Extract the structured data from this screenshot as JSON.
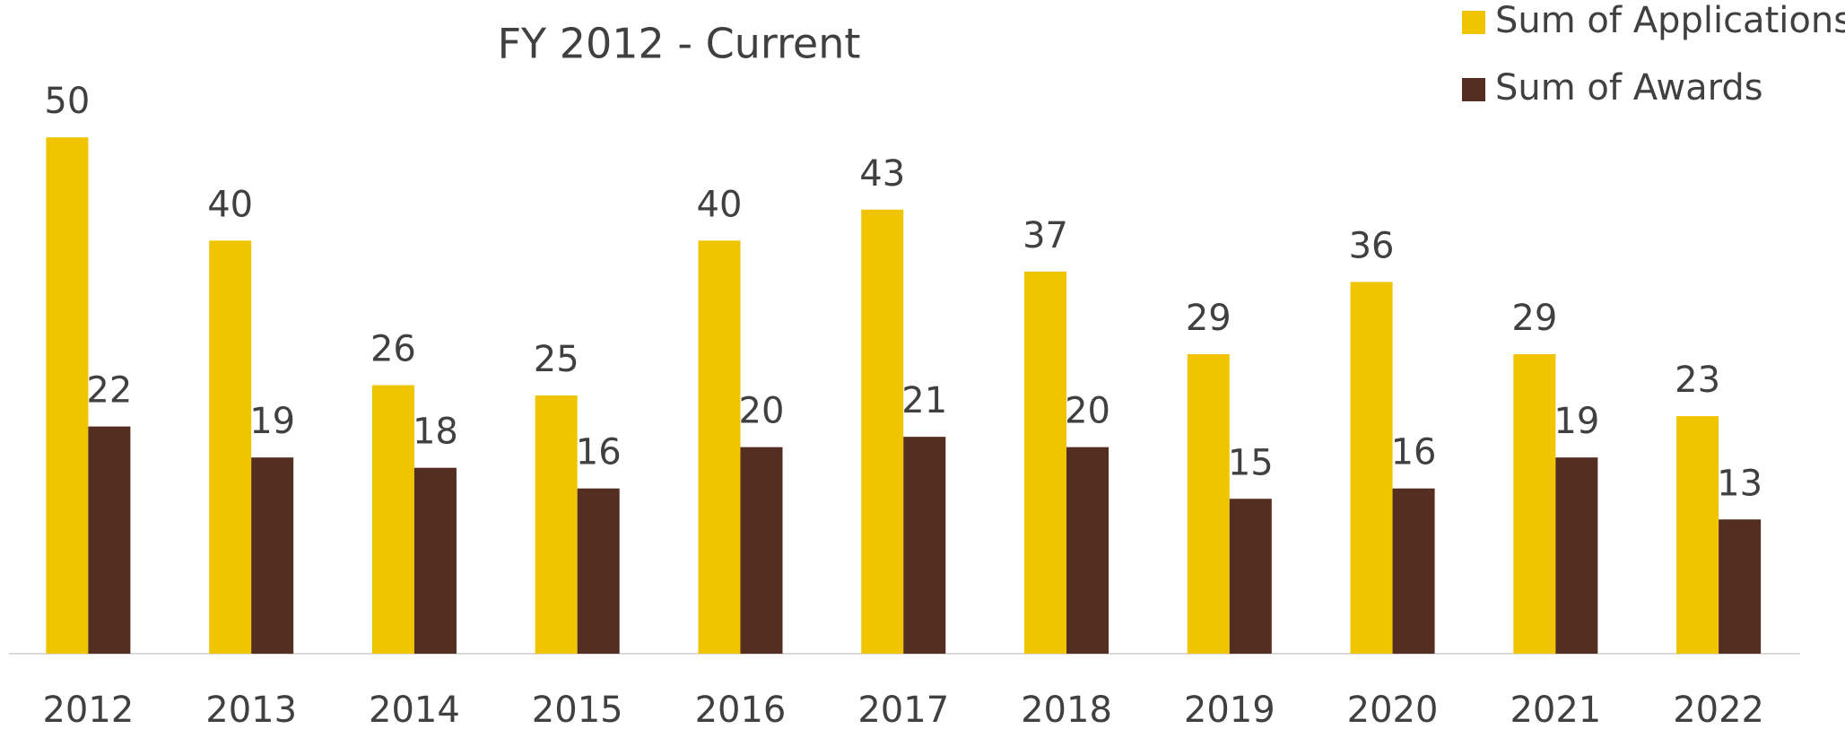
{
  "chart_data": {
    "type": "bar",
    "title": "FY 2012 - Current",
    "categories": [
      "2012",
      "2013",
      "2014",
      "2015",
      "2016",
      "2017",
      "2018",
      "2019",
      "2020",
      "2021",
      "2022"
    ],
    "series": [
      {
        "name": "Sum of Applications",
        "color": "#f0c400",
        "values": [
          50,
          40,
          26,
          25,
          40,
          43,
          37,
          29,
          36,
          29,
          23
        ]
      },
      {
        "name": "Sum of Awards",
        "color": "#532e21",
        "values": [
          22,
          19,
          18,
          16,
          20,
          21,
          20,
          15,
          16,
          19,
          13
        ]
      }
    ],
    "ylim": [
      0,
      60
    ],
    "legend": "top-right"
  }
}
